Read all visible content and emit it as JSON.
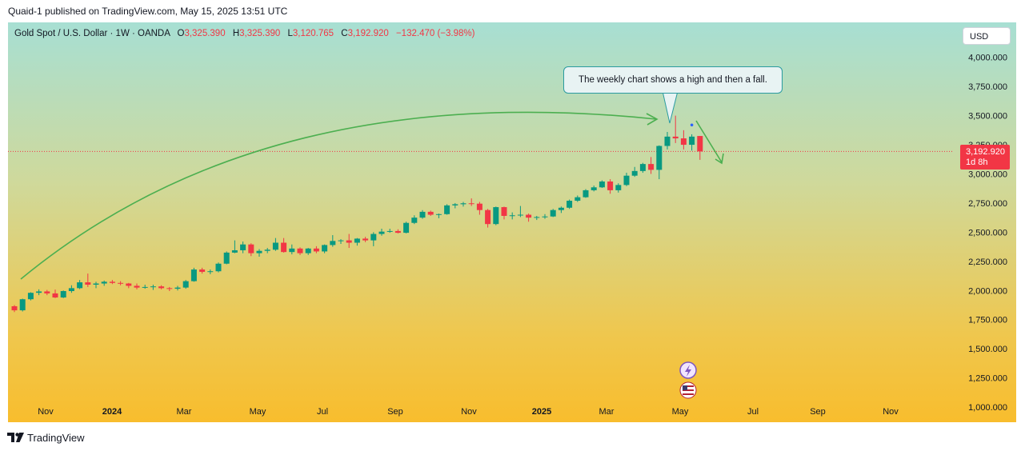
{
  "publisher": "Quaid-1 published on TradingView.com, May 15, 2025 13:51 UTC",
  "legend": {
    "title": "Gold Spot / U.S. Dollar · 1W · OANDA",
    "o_label": "O",
    "o_value": "3,325.390",
    "h_label": "H",
    "h_value": "3,325.390",
    "l_label": "L",
    "l_value": "3,120.765",
    "c_label": "C",
    "c_value": "3,192.920",
    "change": "−132.470 (−3.98%)"
  },
  "currency": "USD",
  "price_tag": {
    "price": "3,192.920",
    "countdown": "1d 8h"
  },
  "callout_text": "The weekly chart shows a high and then a fall.",
  "footer": "TradingView",
  "colors": {
    "up": "#089981",
    "down": "#f23645",
    "arrow": "#4caf50",
    "callout_border": "#2a9ba0"
  },
  "icons": [
    "lightning-event-icon",
    "us-flag-icon",
    "tradingview-logo-icon"
  ],
  "chart_data": {
    "type": "candlestick",
    "interval": "1W",
    "symbol": "XAUUSD",
    "ylim": [
      870,
      4300
    ],
    "y_ticks": [
      1000,
      1250,
      1500,
      1750,
      2000,
      2250,
      2500,
      2750,
      3000,
      3250,
      3500,
      3750,
      4000
    ],
    "y_tick_labels": [
      "1,000.000",
      "1,250.000",
      "1,500.000",
      "1,750.000",
      "2,000.000",
      "2,250.000",
      "2,500.000",
      "2,750.000",
      "3,000.000",
      "3,250.000",
      "3,500.000",
      "3,750.000",
      "4,000.000"
    ],
    "x_labels": [
      "Nov",
      "2024",
      "Mar",
      "May",
      "Jul",
      "Sep",
      "Nov",
      "2025",
      "Mar",
      "May",
      "Jul",
      "Sep",
      "Nov"
    ],
    "last_price": 3192.92,
    "candles": [
      {
        "o": 1865,
        "h": 1875,
        "l": 1815,
        "c": 1830
      },
      {
        "o": 1830,
        "h": 1930,
        "l": 1820,
        "c": 1925
      },
      {
        "o": 1925,
        "h": 1985,
        "l": 1915,
        "c": 1980
      },
      {
        "o": 1980,
        "h": 2010,
        "l": 1960,
        "c": 1992
      },
      {
        "o": 1992,
        "h": 2005,
        "l": 1960,
        "c": 1975
      },
      {
        "o": 1975,
        "h": 2008,
        "l": 1935,
        "c": 1940
      },
      {
        "o": 1940,
        "h": 2000,
        "l": 1935,
        "c": 1995
      },
      {
        "o": 1995,
        "h": 2045,
        "l": 1980,
        "c": 2020
      },
      {
        "o": 2020,
        "h": 2090,
        "l": 2012,
        "c": 2070
      },
      {
        "o": 2070,
        "h": 2145,
        "l": 2030,
        "c": 2050
      },
      {
        "o": 2050,
        "h": 2075,
        "l": 2020,
        "c": 2060
      },
      {
        "o": 2060,
        "h": 2085,
        "l": 2040,
        "c": 2075
      },
      {
        "o": 2075,
        "h": 2090,
        "l": 2055,
        "c": 2065
      },
      {
        "o": 2065,
        "h": 2080,
        "l": 2045,
        "c": 2060
      },
      {
        "o": 2060,
        "h": 2065,
        "l": 2020,
        "c": 2040
      },
      {
        "o": 2040,
        "h": 2060,
        "l": 2010,
        "c": 2025
      },
      {
        "o": 2025,
        "h": 2050,
        "l": 2015,
        "c": 2030
      },
      {
        "o": 2030,
        "h": 2050,
        "l": 2005,
        "c": 2035
      },
      {
        "o": 2035,
        "h": 2045,
        "l": 2010,
        "c": 2020
      },
      {
        "o": 2020,
        "h": 2030,
        "l": 1995,
        "c": 2015
      },
      {
        "o": 2015,
        "h": 2040,
        "l": 2000,
        "c": 2025
      },
      {
        "o": 2025,
        "h": 2090,
        "l": 2015,
        "c": 2080
      },
      {
        "o": 2080,
        "h": 2195,
        "l": 2075,
        "c": 2180
      },
      {
        "o": 2180,
        "h": 2195,
        "l": 2145,
        "c": 2160
      },
      {
        "o": 2160,
        "h": 2180,
        "l": 2140,
        "c": 2165
      },
      {
        "o": 2165,
        "h": 2240,
        "l": 2155,
        "c": 2230
      },
      {
        "o": 2230,
        "h": 2335,
        "l": 2225,
        "c": 2325
      },
      {
        "o": 2325,
        "h": 2430,
        "l": 2320,
        "c": 2345
      },
      {
        "o": 2345,
        "h": 2420,
        "l": 2320,
        "c": 2395
      },
      {
        "o": 2395,
        "h": 2405,
        "l": 2295,
        "c": 2320
      },
      {
        "o": 2320,
        "h": 2355,
        "l": 2290,
        "c": 2340
      },
      {
        "o": 2340,
        "h": 2365,
        "l": 2320,
        "c": 2350
      },
      {
        "o": 2350,
        "h": 2450,
        "l": 2340,
        "c": 2410
      },
      {
        "o": 2410,
        "h": 2450,
        "l": 2325,
        "c": 2330
      },
      {
        "o": 2330,
        "h": 2395,
        "l": 2310,
        "c": 2360
      },
      {
        "o": 2360,
        "h": 2370,
        "l": 2305,
        "c": 2320
      },
      {
        "o": 2320,
        "h": 2365,
        "l": 2305,
        "c": 2360
      },
      {
        "o": 2360,
        "h": 2380,
        "l": 2320,
        "c": 2335
      },
      {
        "o": 2335,
        "h": 2395,
        "l": 2320,
        "c": 2390
      },
      {
        "o": 2390,
        "h": 2475,
        "l": 2375,
        "c": 2425
      },
      {
        "o": 2425,
        "h": 2440,
        "l": 2400,
        "c": 2430
      },
      {
        "o": 2430,
        "h": 2485,
        "l": 2365,
        "c": 2410
      },
      {
        "o": 2410,
        "h": 2450,
        "l": 2385,
        "c": 2445
      },
      {
        "o": 2445,
        "h": 2460,
        "l": 2415,
        "c": 2430
      },
      {
        "o": 2430,
        "h": 2500,
        "l": 2380,
        "c": 2485
      },
      {
        "o": 2485,
        "h": 2530,
        "l": 2470,
        "c": 2505
      },
      {
        "o": 2505,
        "h": 2530,
        "l": 2495,
        "c": 2510
      },
      {
        "o": 2510,
        "h": 2525,
        "l": 2490,
        "c": 2495
      },
      {
        "o": 2495,
        "h": 2590,
        "l": 2490,
        "c": 2580
      },
      {
        "o": 2580,
        "h": 2645,
        "l": 2570,
        "c": 2625
      },
      {
        "o": 2625,
        "h": 2690,
        "l": 2615,
        "c": 2675
      },
      {
        "o": 2675,
        "h": 2685,
        "l": 2640,
        "c": 2650
      },
      {
        "o": 2650,
        "h": 2660,
        "l": 2620,
        "c": 2655
      },
      {
        "o": 2655,
        "h": 2740,
        "l": 2650,
        "c": 2730
      },
      {
        "o": 2730,
        "h": 2750,
        "l": 2705,
        "c": 2740
      },
      {
        "o": 2740,
        "h": 2760,
        "l": 2720,
        "c": 2748
      },
      {
        "o": 2748,
        "h": 2790,
        "l": 2725,
        "c": 2745
      },
      {
        "o": 2745,
        "h": 2760,
        "l": 2650,
        "c": 2690
      },
      {
        "o": 2690,
        "h": 2700,
        "l": 2540,
        "c": 2570
      },
      {
        "o": 2570,
        "h": 2720,
        "l": 2560,
        "c": 2715
      },
      {
        "o": 2715,
        "h": 2720,
        "l": 2610,
        "c": 2640
      },
      {
        "o": 2640,
        "h": 2670,
        "l": 2610,
        "c": 2645
      },
      {
        "o": 2645,
        "h": 2725,
        "l": 2630,
        "c": 2650
      },
      {
        "o": 2650,
        "h": 2660,
        "l": 2590,
        "c": 2625
      },
      {
        "o": 2625,
        "h": 2640,
        "l": 2605,
        "c": 2630
      },
      {
        "o": 2630,
        "h": 2655,
        "l": 2615,
        "c": 2635
      },
      {
        "o": 2635,
        "h": 2700,
        "l": 2630,
        "c": 2690
      },
      {
        "o": 2690,
        "h": 2720,
        "l": 2665,
        "c": 2710
      },
      {
        "o": 2710,
        "h": 2780,
        "l": 2700,
        "c": 2770
      },
      {
        "o": 2770,
        "h": 2815,
        "l": 2760,
        "c": 2800
      },
      {
        "o": 2800,
        "h": 2870,
        "l": 2795,
        "c": 2860
      },
      {
        "o": 2860,
        "h": 2900,
        "l": 2850,
        "c": 2885
      },
      {
        "o": 2885,
        "h": 2945,
        "l": 2880,
        "c": 2935
      },
      {
        "o": 2935,
        "h": 2955,
        "l": 2830,
        "c": 2860
      },
      {
        "o": 2860,
        "h": 2920,
        "l": 2840,
        "c": 2905
      },
      {
        "o": 2905,
        "h": 3010,
        "l": 2895,
        "c": 2985
      },
      {
        "o": 2985,
        "h": 3060,
        "l": 2975,
        "c": 3025
      },
      {
        "o": 3025,
        "h": 3095,
        "l": 3010,
        "c": 3085
      },
      {
        "o": 3085,
        "h": 3145,
        "l": 3000,
        "c": 3035
      },
      {
        "o": 3035,
        "h": 3245,
        "l": 2955,
        "c": 3240
      },
      {
        "o": 3240,
        "h": 3360,
        "l": 3210,
        "c": 3320
      },
      {
        "o": 3320,
        "h": 3500,
        "l": 3265,
        "c": 3305
      },
      {
        "o": 3305,
        "h": 3375,
        "l": 3210,
        "c": 3250
      },
      {
        "o": 3250,
        "h": 3340,
        "l": 3200,
        "c": 3320
      },
      {
        "o": 3325.39,
        "h": 3325.39,
        "l": 3120.765,
        "c": 3192.92
      }
    ]
  }
}
